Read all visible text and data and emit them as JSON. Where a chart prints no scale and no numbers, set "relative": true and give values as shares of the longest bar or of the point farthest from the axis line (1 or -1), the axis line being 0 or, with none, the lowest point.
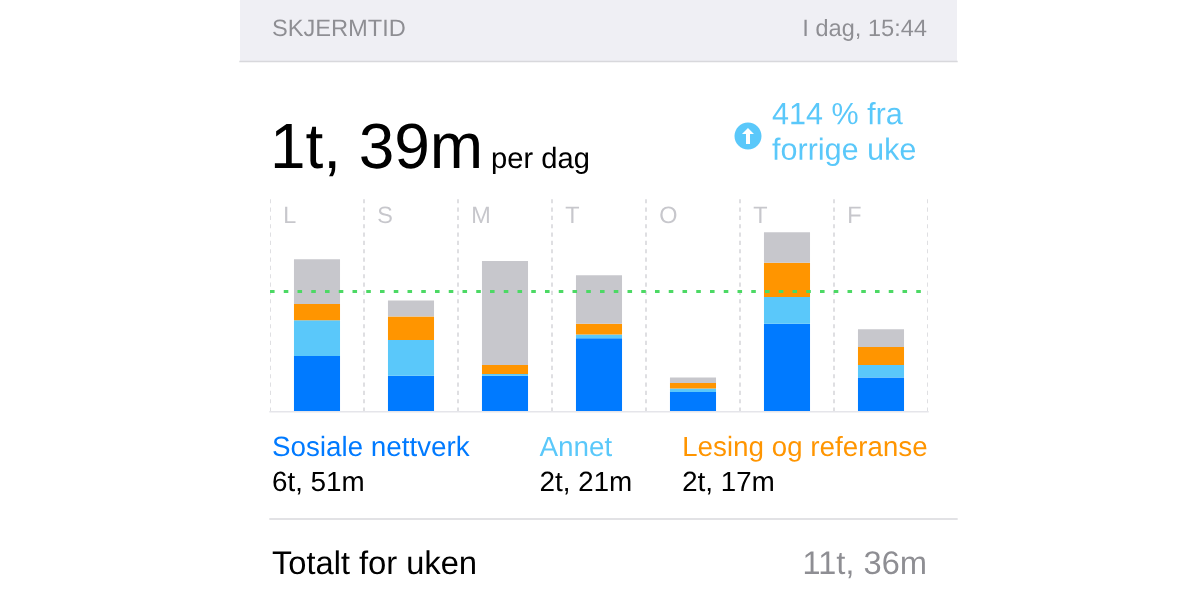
{
  "chart_data": {
    "type": "bar",
    "title": "SKJERMTID",
    "subtitle": "1t, 39m",
    "categories": [
      "L",
      "S",
      "M",
      "T",
      "O",
      "T",
      "F"
    ],
    "relative": true,
    "stacked": true,
    "series": [
      {
        "name": "Sosiale nettverk",
        "color": "#007aff",
        "values": [
          0.31,
          0.2,
          0.2,
          0.41,
          0.11,
          0.49,
          0.19
        ]
      },
      {
        "name": "Annet",
        "color": "#5ac8fa",
        "values": [
          0.2,
          0.2,
          0.01,
          0.02,
          0.02,
          0.15,
          0.07
        ]
      },
      {
        "name": "Lesing og referanse",
        "color": "#ff9500",
        "values": [
          0.09,
          0.13,
          0.05,
          0.06,
          0.03,
          0.19,
          0.1
        ]
      },
      {
        "color": "#c7c7cc",
        "values": [
          0.25,
          0.09,
          0.58,
          0.27,
          0.03,
          0.17,
          0.1
        ]
      }
    ],
    "ref_lines": [
      {
        "axis": "y",
        "value": 0.67,
        "color": "#4cd964",
        "line_style": "dashed"
      }
    ],
    "grid": "x",
    "legend": "bottom",
    "tick_labels": "x",
    "annotations": [
      "6t, 51m",
      "2t, 21m",
      "2t, 17m",
      "I dag, 15:44",
      "per dag",
      "414 % fra forrige uke",
      "Totalt for uken",
      "11t, 36m"
    ]
  }
}
